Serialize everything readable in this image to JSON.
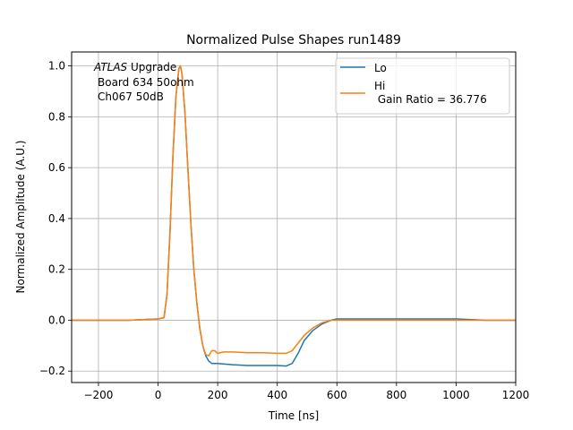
{
  "chart_data": {
    "type": "line",
    "title": "Normalized Pulse Shapes run1489",
    "xlabel": "Time [ns]",
    "ylabel": "Normalized Amplitude (A.U.)",
    "xlim": [
      -290,
      1200
    ],
    "ylim": [
      -0.245,
      1.055
    ],
    "xticks": [
      -200,
      0,
      200,
      400,
      600,
      800,
      1000,
      1200
    ],
    "xtick_labels": [
      "−200",
      "0",
      "200",
      "400",
      "600",
      "800",
      "1000",
      "1200"
    ],
    "yticks": [
      -0.2,
      0.0,
      0.2,
      0.4,
      0.6,
      0.8,
      1.0
    ],
    "ytick_labels": [
      "−0.2",
      "0.0",
      "0.2",
      "0.4",
      "0.6",
      "0.8",
      "1.0"
    ],
    "grid": true,
    "legend_position": "top-right",
    "annotation": {
      "line1_italic": "ATLAS",
      "line1_rest": " Upgrade",
      "line2": "Board 634 50ohm",
      "line3": "Ch067 50dB"
    },
    "series": [
      {
        "name": "Lo",
        "color": "#1f77b4",
        "x": [
          -290,
          -200,
          -100,
          0,
          20,
          30,
          40,
          50,
          60,
          70,
          75,
          80,
          90,
          100,
          110,
          120,
          130,
          140,
          150,
          160,
          170,
          180,
          200,
          250,
          300,
          350,
          400,
          430,
          450,
          470,
          490,
          520,
          550,
          580,
          600,
          700,
          800,
          900,
          1000,
          1100,
          1200
        ],
        "y": [
          0.0,
          0.0,
          0.0,
          0.005,
          0.01,
          0.1,
          0.35,
          0.65,
          0.88,
          0.99,
          1.0,
          0.97,
          0.82,
          0.6,
          0.38,
          0.2,
          0.07,
          -0.03,
          -0.1,
          -0.14,
          -0.16,
          -0.17,
          -0.17,
          -0.175,
          -0.178,
          -0.178,
          -0.178,
          -0.18,
          -0.17,
          -0.13,
          -0.08,
          -0.04,
          -0.015,
          0.0,
          0.005,
          0.005,
          0.005,
          0.005,
          0.005,
          0.0,
          0.0
        ]
      },
      {
        "name": "Hi\n Gain Ratio = 36.776",
        "color": "#ff7f0e",
        "x": [
          -290,
          -200,
          -100,
          0,
          20,
          30,
          40,
          50,
          60,
          70,
          75,
          80,
          90,
          100,
          110,
          120,
          130,
          140,
          150,
          160,
          170,
          180,
          190,
          200,
          220,
          250,
          300,
          350,
          400,
          430,
          450,
          470,
          490,
          520,
          550,
          580,
          600,
          700,
          800,
          900,
          1000,
          1100,
          1200
        ],
        "y": [
          0.0,
          0.0,
          0.0,
          0.005,
          0.01,
          0.1,
          0.35,
          0.65,
          0.88,
          0.99,
          1.0,
          0.97,
          0.82,
          0.6,
          0.38,
          0.2,
          0.07,
          -0.03,
          -0.1,
          -0.135,
          -0.14,
          -0.12,
          -0.12,
          -0.13,
          -0.125,
          -0.125,
          -0.128,
          -0.128,
          -0.13,
          -0.13,
          -0.12,
          -0.09,
          -0.06,
          -0.03,
          -0.01,
          0.0,
          0.0,
          0.0,
          0.0,
          0.0,
          0.0,
          0.0,
          0.0
        ]
      }
    ]
  }
}
